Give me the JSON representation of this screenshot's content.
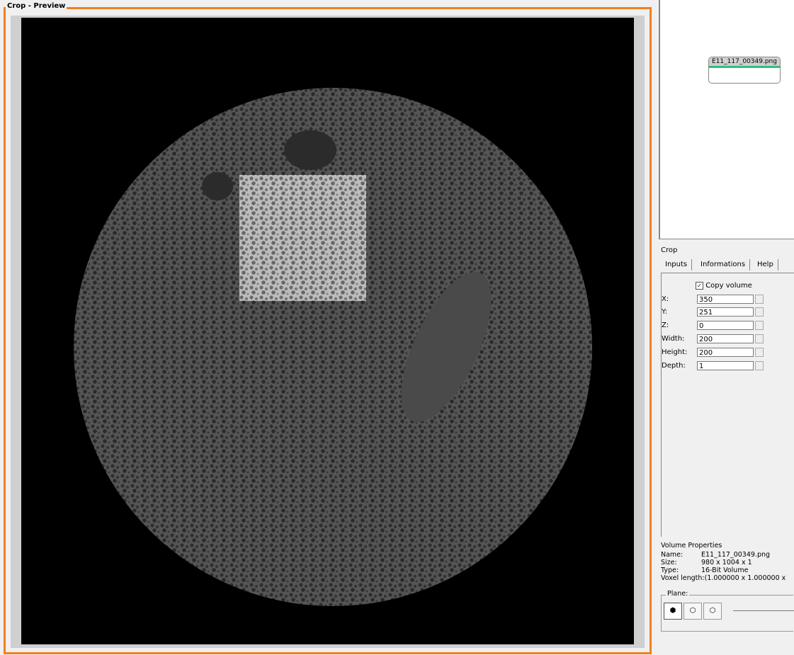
{
  "preview": {
    "title": "Crop - Preview"
  },
  "graph": {
    "node_label": "E11_117_00349.png"
  },
  "crop": {
    "title": "Crop",
    "tabs": [
      "Inputs",
      "Informations",
      "Help"
    ],
    "copy_volume": "Copy volume",
    "fields": [
      {
        "label": "X:",
        "value": 350
      },
      {
        "label": "Y:",
        "value": 251
      },
      {
        "label": "Z:",
        "value": 0
      },
      {
        "label": "Width:",
        "value": 200
      },
      {
        "label": "Height:",
        "value": 200
      },
      {
        "label": "Depth:",
        "value": 1
      }
    ]
  },
  "volume_properties": {
    "title": "Volume Properties",
    "rows": [
      {
        "label": "Name:",
        "value": "E11_117_00349.png"
      },
      {
        "label": "Size:",
        "value": "980 x 1004 x 1"
      },
      {
        "label": "Type:",
        "value": "16-Bit Volume"
      },
      {
        "label": "Voxel length:",
        "value": "(1.000000 x 1.000000 x"
      }
    ]
  },
  "plane": {
    "label": "Plane:"
  }
}
